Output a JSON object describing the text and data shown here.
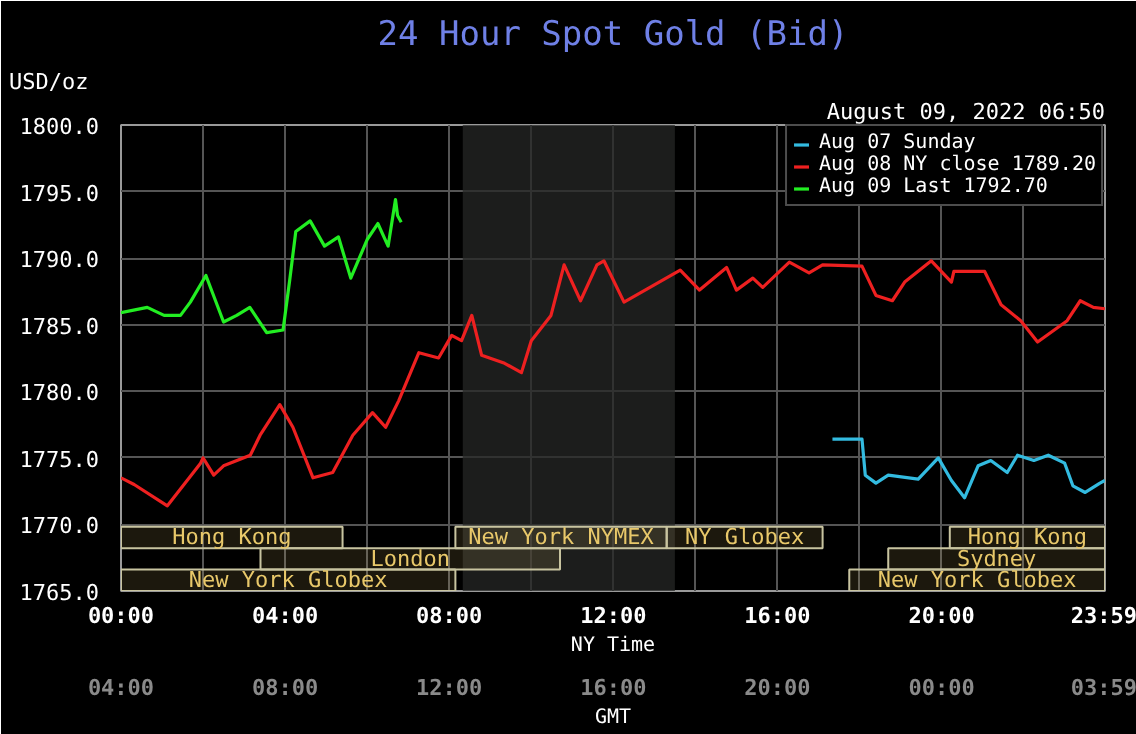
{
  "chart_data": {
    "type": "line",
    "title": "24 Hour Spot Gold (Bid)",
    "subtitle": "August 09, 2022 06:50",
    "ylabel": "USD/oz",
    "xlabel": "NY Time",
    "x2label": "GMT",
    "xlim": [
      0,
      23.983
    ],
    "ylim": [
      1765,
      1800
    ],
    "xticks": [
      {
        "value": 0,
        "label": "00:00"
      },
      {
        "value": 2,
        "label": null
      },
      {
        "value": 4,
        "label": "04:00"
      },
      {
        "value": 6,
        "label": null
      },
      {
        "value": 8,
        "label": "08:00"
      },
      {
        "value": 10,
        "label": null
      },
      {
        "value": 12,
        "label": "12:00"
      },
      {
        "value": 14,
        "label": null
      },
      {
        "value": 16,
        "label": "16:00"
      },
      {
        "value": 18,
        "label": null
      },
      {
        "value": 20,
        "label": "20:00"
      },
      {
        "value": 22,
        "label": null
      },
      {
        "value": 23.983,
        "label": "23:59"
      }
    ],
    "x2lim": [
      "2022-08-09T04:00",
      "2022-08-10T03:59"
    ],
    "x2ticks": [
      {
        "value": "2022-08-09T04:00",
        "label": "04:00"
      },
      {
        "value": "2022-08-09T08:00",
        "label": "08:00"
      },
      {
        "value": "2022-08-09T12:00",
        "label": "12:00"
      },
      {
        "value": "2022-08-09T16:00",
        "label": "16:00"
      },
      {
        "value": "2022-08-09T20:00",
        "label": "20:00"
      },
      {
        "value": "2022-08-10T00:00",
        "label": "00:00"
      },
      {
        "value": "2022-08-10T03:59",
        "label": "03:59"
      }
    ],
    "yticks": [
      {
        "value": 1765,
        "label": "1765.0"
      },
      {
        "value": 1770,
        "label": "1770.0"
      },
      {
        "value": 1775,
        "label": "1775.0"
      },
      {
        "value": 1780,
        "label": "1780.0"
      },
      {
        "value": 1785,
        "label": "1785.0"
      },
      {
        "value": 1790,
        "label": "1790.0"
      },
      {
        "value": 1795,
        "label": "1795.0"
      },
      {
        "value": 1800,
        "label": "1800.0"
      }
    ],
    "grid": true,
    "legend": "top right",
    "bands": [
      {
        "axis": "x",
        "from": 8.33,
        "to": 13.5,
        "color": "#262726"
      },
      {
        "axis": "x",
        "from": 0,
        "to": 5.4,
        "label": "Hong Kong",
        "color": "#e8c86a"
      },
      {
        "axis": "x",
        "from": 20.2,
        "to": 23.983,
        "label": "Hong Kong",
        "color": "#e8c86a"
      },
      {
        "axis": "x",
        "from": 3.4,
        "to": 10.7,
        "label": "London",
        "color": "#e8c86a"
      },
      {
        "axis": "x",
        "from": 18.7,
        "to": 23.983,
        "label": "Sydney",
        "color": "#e8c86a"
      },
      {
        "axis": "x",
        "from": 0,
        "to": 8.15,
        "label": "New York Globex",
        "color": "#e8c86a"
      },
      {
        "axis": "x",
        "from": 8.15,
        "to": 13.3,
        "label": "New York NYMEX",
        "color": "#e8c86a"
      },
      {
        "axis": "x",
        "from": 13.3,
        "to": 17.1,
        "label": "NY Globex",
        "color": "#e8c86a"
      },
      {
        "axis": "x",
        "from": 17.75,
        "to": 23.983,
        "label": "New York Globex",
        "color": "#e8c86a"
      }
    ],
    "series": [
      {
        "name": "Aug 07 Sunday",
        "color": "#33bbe0",
        "x": [
          17.34,
          18.06,
          18.14,
          18.4,
          18.7,
          19.43,
          19.92,
          20.24,
          20.56,
          20.89,
          21.2,
          21.6,
          21.85,
          22.25,
          22.6,
          23.0,
          23.2,
          23.5,
          23.86,
          23.98
        ],
        "values": [
          1776.4,
          1776.4,
          1773.7,
          1773.1,
          1773.7,
          1773.4,
          1775.0,
          1773.3,
          1772.0,
          1774.4,
          1774.8,
          1773.9,
          1775.2,
          1774.8,
          1775.2,
          1774.6,
          1772.9,
          1772.4,
          1773.1,
          1773.3
        ]
      },
      {
        "name": "Aug 08 NY close 1789.20",
        "color": "#ee2020",
        "x": [
          0,
          0.32,
          1.13,
          1.94,
          2.0,
          2.26,
          2.5,
          3.15,
          3.39,
          3.87,
          4.19,
          4.68,
          5.16,
          5.65,
          6.13,
          6.45,
          6.77,
          7.26,
          7.74,
          8.06,
          8.3,
          8.55,
          8.79,
          9.35,
          9.76,
          10.0,
          10.48,
          10.8,
          11.2,
          11.6,
          11.77,
          12.26,
          13.63,
          14.1,
          14.76,
          15.0,
          15.4,
          15.64,
          16.29,
          16.77,
          17.1,
          18.06,
          18.4,
          18.8,
          19.1,
          19.75,
          20.24,
          20.3,
          21.05,
          21.45,
          21.93,
          22.34,
          23.06,
          23.38,
          23.7,
          23.98
        ],
        "values": [
          1773.5,
          1773.0,
          1771.4,
          1774.6,
          1775.0,
          1773.7,
          1774.4,
          1775.2,
          1776.7,
          1779.0,
          1777.3,
          1773.5,
          1773.9,
          1776.7,
          1778.4,
          1777.3,
          1779.3,
          1782.9,
          1782.5,
          1784.2,
          1783.8,
          1785.7,
          1782.7,
          1782.1,
          1781.4,
          1783.8,
          1785.7,
          1789.5,
          1786.8,
          1789.5,
          1789.8,
          1786.7,
          1789.1,
          1787.6,
          1789.3,
          1787.6,
          1788.5,
          1787.8,
          1789.7,
          1788.9,
          1789.5,
          1789.4,
          1787.2,
          1786.8,
          1788.2,
          1789.8,
          1788.2,
          1789.0,
          1789.0,
          1786.5,
          1785.3,
          1783.7,
          1785.3,
          1786.8,
          1786.3,
          1786.2
        ]
      },
      {
        "name": "Aug 09 Last 1792.70",
        "color": "#22ee22",
        "x": [
          0,
          0.64,
          1.05,
          1.45,
          1.69,
          2.07,
          2.5,
          2.82,
          3.14,
          3.55,
          3.95,
          4.11,
          4.26,
          4.61,
          4.96,
          5.3,
          5.6,
          6.0,
          6.26,
          6.51,
          6.69,
          6.74,
          6.83
        ],
        "values": [
          1785.9,
          1786.3,
          1785.7,
          1785.7,
          1786.7,
          1788.7,
          1785.2,
          1785.7,
          1786.3,
          1784.4,
          1784.6,
          1788.3,
          1792.0,
          1792.8,
          1790.9,
          1791.6,
          1788.5,
          1791.4,
          1792.6,
          1790.9,
          1794.4,
          1793.2,
          1792.7
        ]
      }
    ]
  }
}
